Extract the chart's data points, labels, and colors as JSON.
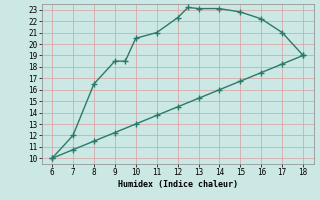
{
  "upper_x": [
    6,
    7,
    8,
    9,
    9.5,
    10,
    11,
    12,
    12.5,
    13,
    14,
    15,
    16,
    17,
    18
  ],
  "upper_y": [
    10,
    12,
    16.5,
    18.5,
    18.5,
    20.5,
    21,
    22.3,
    23.2,
    23.1,
    23.1,
    22.8,
    22.2,
    21.0,
    19.0
  ],
  "lower_x": [
    6,
    7,
    8,
    9,
    10,
    11,
    12,
    13,
    14,
    15,
    16,
    17,
    18
  ],
  "lower_y": [
    10,
    10.75,
    11.5,
    12.25,
    13.0,
    13.75,
    14.5,
    15.25,
    16.0,
    16.75,
    17.5,
    18.25,
    19.0
  ],
  "line_color": "#2a7a6a",
  "bg_color": "#cce8e4",
  "grid_color": "#b0d8d2",
  "xlabel": "Humidex (Indice chaleur)",
  "xlim": [
    5.5,
    18.5
  ],
  "ylim": [
    9.5,
    23.5
  ],
  "xticks": [
    6,
    7,
    8,
    9,
    10,
    11,
    12,
    13,
    14,
    15,
    16,
    17,
    18
  ],
  "yticks": [
    10,
    11,
    12,
    13,
    14,
    15,
    16,
    17,
    18,
    19,
    20,
    21,
    22,
    23
  ],
  "marker_size": 4,
  "line_width": 1.0
}
